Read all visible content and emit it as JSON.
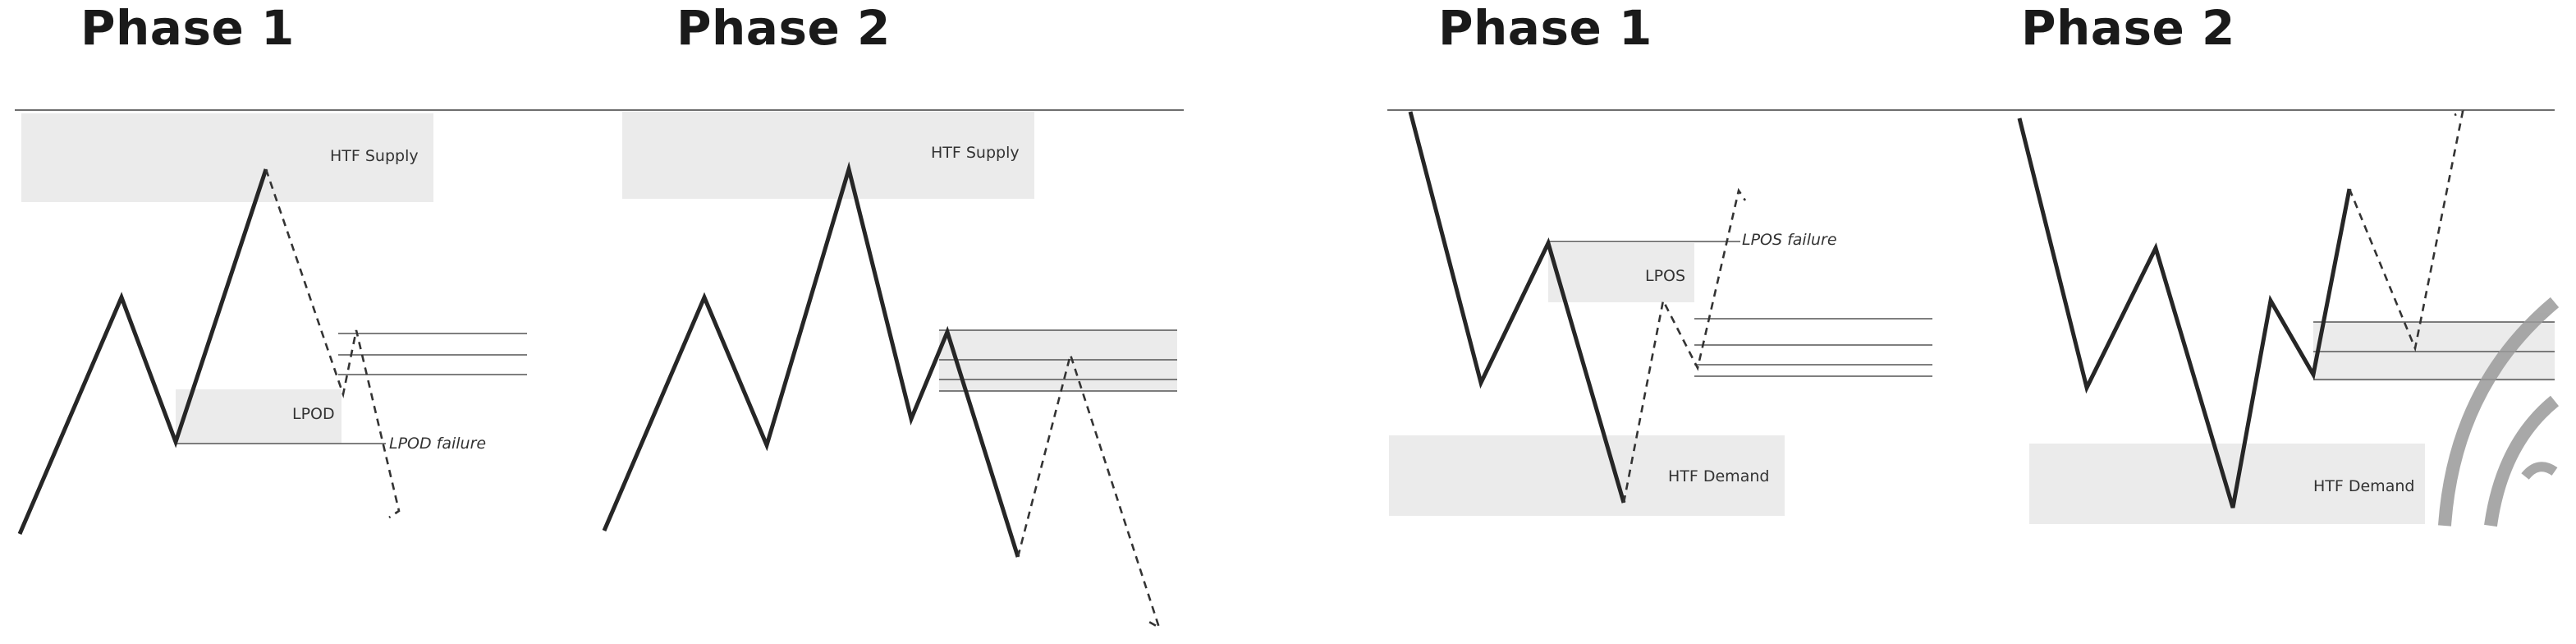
{
  "panels": [
    {
      "title": "Phase 1",
      "zone_labels": {
        "supply": "HTF Supply",
        "lpod": "LPOD"
      },
      "annotation": "LPOD failure"
    },
    {
      "title": "Phase 2",
      "zone_labels": {
        "supply": "HTF Supply"
      }
    },
    {
      "title": "Phase 1",
      "zone_labels": {
        "lpos": "LPOS",
        "demand": "HTF Demand"
      },
      "annotation": "LPOS failure"
    },
    {
      "title": "Phase 2",
      "zone_labels": {
        "demand": "HTF Demand"
      }
    }
  ],
  "colors": {
    "price_line": "#262626",
    "zone_fill": "#ebebeb",
    "watermark": "#9a9a9a"
  }
}
